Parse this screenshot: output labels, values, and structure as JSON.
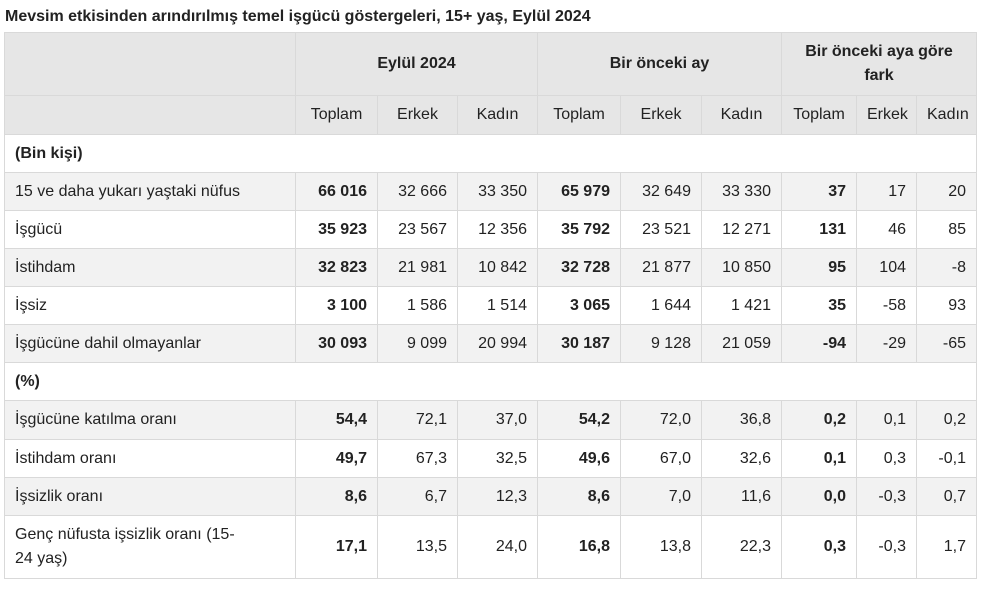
{
  "title": "Mevsim etkisinden arındırılmış temel işgücü göstergeleri, 15+ yaş, Eylül 2024",
  "header": {
    "groups": [
      "Eylül 2024",
      "Bir önceki ay",
      "Bir önceki aya göre fark"
    ],
    "sub": [
      "Toplam",
      "Erkek",
      "Kadın",
      "Toplam",
      "Erkek",
      "Kadın",
      "Toplam",
      "Erkek",
      "Kadın"
    ]
  },
  "sections": [
    {
      "label": "(Bin kişi)",
      "rows": [
        {
          "label": "15 ve daha yukarı yaştaki nüfus",
          "values": [
            "66 016",
            "32 666",
            "33 350",
            "65 979",
            "32 649",
            "33 330",
            "37",
            "17",
            "20"
          ]
        },
        {
          "label": "İşgücü",
          "values": [
            "35 923",
            "23 567",
            "12 356",
            "35 792",
            "23 521",
            "12 271",
            "131",
            "46",
            "85"
          ]
        },
        {
          "label": "İstihdam",
          "values": [
            "32 823",
            "21 981",
            "10 842",
            "32 728",
            "21 877",
            "10 850",
            "95",
            "104",
            "-8"
          ]
        },
        {
          "label": "İşsiz",
          "values": [
            "3 100",
            "1 586",
            "1 514",
            "3 065",
            "1 644",
            "1 421",
            "35",
            "-58",
            "93"
          ]
        },
        {
          "label": "İşgücüne dahil olmayanlar",
          "values": [
            "30 093",
            "9 099",
            "20 994",
            "30 187",
            "9 128",
            "21 059",
            "-94",
            "-29",
            "-65"
          ]
        }
      ]
    },
    {
      "label": "(%)",
      "rows": [
        {
          "label": "İşgücüne katılma oranı",
          "values": [
            "54,4",
            "72,1",
            "37,0",
            "54,2",
            "72,0",
            "36,8",
            "0,2",
            "0,1",
            "0,2"
          ]
        },
        {
          "label": "İstihdam oranı",
          "values": [
            "49,7",
            "67,3",
            "32,5",
            "49,6",
            "67,0",
            "32,6",
            "0,1",
            "0,3",
            "-0,1"
          ]
        },
        {
          "label": "İşsizlik oranı",
          "values": [
            "8,6",
            "6,7",
            "12,3",
            "8,6",
            "7,0",
            "11,6",
            "0,0",
            "-0,3",
            "0,7"
          ]
        },
        {
          "label": "Genç nüfusta işsizlik oranı (15-24 yaş)",
          "values": [
            "17,1",
            "13,5",
            "24,0",
            "16,8",
            "13,8",
            "22,3",
            "0,3",
            "-0,3",
            "1,7"
          ]
        }
      ]
    }
  ]
}
